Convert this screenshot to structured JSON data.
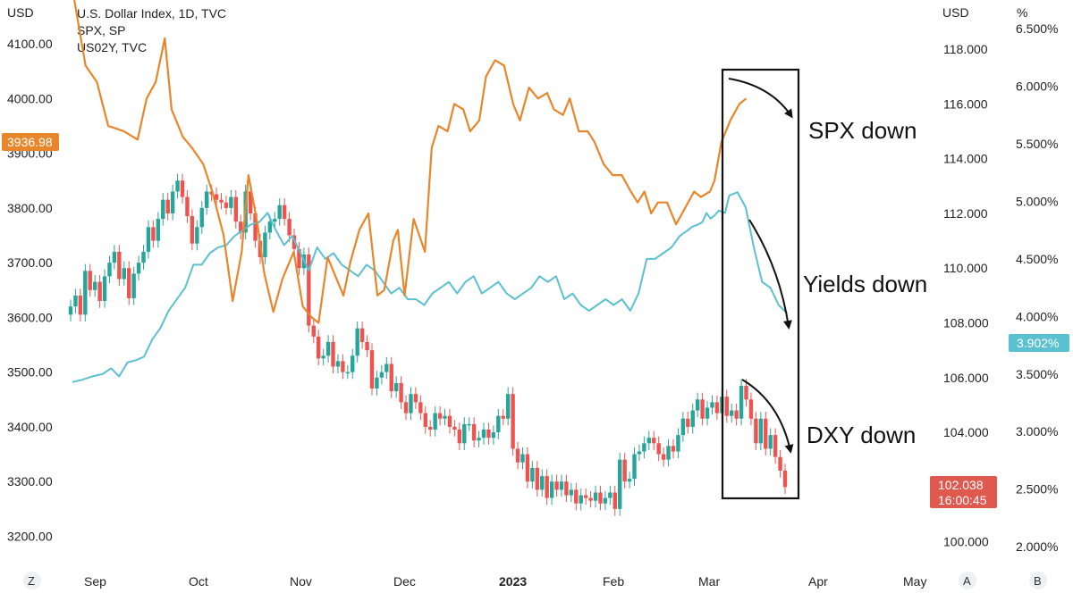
{
  "header": {
    "left_unit": "USD",
    "right_unit_1": "USD",
    "right_unit_2": "%"
  },
  "legend": [
    "U.S. Dollar Index, 1D, TVC",
    "SPX, SP",
    "US02Y, TVC"
  ],
  "annotations": [
    "SPX down",
    "Yields down",
    "DXY down"
  ],
  "footer_buttons": {
    "left": "Z",
    "right_a": "A",
    "right_b": "B"
  },
  "price_tags": {
    "spx": "3936.98",
    "us02y": "3.902%",
    "dxy_price": "102.038",
    "dxy_timer": "16:00:45"
  },
  "colors": {
    "spx": "#e8862b",
    "us02y": "#5bc0d0",
    "candle_up": "#26a69a",
    "candle_down": "#ef5350",
    "tag_dxy": "#e0594f"
  },
  "chart_data": {
    "type": "line",
    "x_tick_labels": [
      "Sep",
      "Oct",
      "Nov",
      "Dec",
      "2023",
      "Feb",
      "Mar",
      "Apr",
      "May"
    ],
    "left_axis": {
      "label": "USD",
      "ticks": [
        "4100.00",
        "4000.00",
        "3900.00",
        "3800.00",
        "3700.00",
        "3600.00",
        "3500.00",
        "3400.00",
        "3300.00",
        "3200.00"
      ],
      "range": [
        3160,
        4180
      ]
    },
    "right_axis_usd": {
      "label": "USD",
      "ticks": [
        "118.000",
        "116.000",
        "114.000",
        "112.000",
        "110.000",
        "108.000",
        "106.000",
        "104.000",
        "102.000",
        "100.000"
      ],
      "range": [
        99.4,
        119.8
      ]
    },
    "right_axis_pct": {
      "label": "%",
      "ticks": [
        "6.500%",
        "6.000%",
        "5.500%",
        "5.000%",
        "4.500%",
        "4.000%",
        "3.500%",
        "3.000%",
        "2.500%",
        "2.000%"
      ],
      "range": [
        1.9,
        6.75
      ]
    },
    "series": [
      {
        "name": "SPX, SP",
        "axis": "left",
        "x": [
          0.12,
          0.7,
          1.2,
          1.7,
          2.4,
          3.0,
          3.4,
          3.8,
          4.2,
          4.5,
          5.0,
          5.4,
          5.9,
          6.3,
          6.8,
          7.2,
          7.6,
          7.9,
          8.3,
          8.6,
          9.0,
          9.4,
          9.9,
          10.3,
          10.7,
          11.0,
          11.4,
          11.7,
          12.1,
          12.4,
          12.8,
          13.2,
          13.6,
          13.9,
          14.3,
          14.5,
          14.8,
          15.2,
          15.7,
          16.0,
          16.3,
          16.7,
          17.0,
          17.4,
          17.7,
          18.1,
          18.4,
          18.8,
          19.2,
          19.6,
          19.9,
          20.3,
          20.7,
          21.1,
          21.4,
          21.8,
          22.1,
          22.5,
          22.9,
          23.2,
          23.6,
          24.0,
          24.4,
          24.8,
          25.1,
          25.4,
          25.7,
          26.0,
          26.4,
          26.8,
          27.2,
          27.6,
          27.9,
          28.3,
          28.5,
          28.8,
          29.2,
          29.6,
          29.9
        ],
        "y": [
          4200,
          4060,
          4030,
          3950,
          3940,
          3925,
          4000,
          4030,
          4110,
          3980,
          3930,
          3910,
          3880,
          3830,
          3750,
          3630,
          3720,
          3860,
          3770,
          3680,
          3610,
          3670,
          3720,
          3620,
          3600,
          3590,
          3710,
          3680,
          3640,
          3700,
          3760,
          3790,
          3640,
          3650,
          3740,
          3760,
          3640,
          3780,
          3720,
          3910,
          3950,
          3940,
          3990,
          3980,
          3940,
          3960,
          4040,
          4070,
          4060,
          3990,
          3960,
          4020,
          4000,
          4010,
          3980,
          3970,
          4000,
          3940,
          3940,
          3920,
          3880,
          3860,
          3860,
          3830,
          3810,
          3830,
          3790,
          3810,
          3810,
          3770,
          3800,
          3830,
          3820,
          3830,
          3850,
          3920,
          3960,
          3990,
          4000
        ]
      },
      {
        "name": "US02Y, TVC",
        "axis": "pct",
        "x": [
          0.12,
          0.6,
          1.1,
          1.6,
          2.0,
          2.4,
          2.8,
          3.2,
          3.6,
          4.0,
          4.4,
          4.8,
          5.2,
          5.6,
          6.0,
          6.4,
          6.8,
          7.2,
          7.6,
          8.0,
          8.4,
          8.8,
          9.2,
          9.6,
          10.0,
          10.4,
          10.8,
          11.2,
          11.6,
          12.0,
          12.4,
          12.8,
          13.2,
          13.6,
          14.0,
          14.4,
          14.8,
          15.2,
          15.6,
          16.0,
          16.4,
          16.8,
          17.2,
          17.6,
          18.0,
          18.4,
          18.8,
          19.2,
          19.6,
          20.0,
          20.4,
          20.8,
          21.2,
          21.6,
          22.0,
          22.4,
          22.8,
          23.2,
          23.6,
          24.0,
          24.4,
          24.8,
          25.2,
          25.6,
          26.0,
          26.4,
          26.8,
          27.2,
          27.6,
          28.0,
          28.4,
          28.8,
          29.2,
          29.6,
          30.0,
          30.2,
          30.5,
          30.7,
          30.9,
          31.1,
          31.3,
          31.5,
          31.8,
          32.0,
          32.4,
          32.8,
          33.2,
          33.6,
          34.0,
          34.4,
          34.8
        ],
        "y": [
          3.43,
          3.45,
          3.48,
          3.5,
          3.55,
          3.48,
          3.6,
          3.62,
          3.65,
          3.8,
          3.9,
          4.05,
          4.15,
          4.25,
          4.45,
          4.45,
          4.55,
          4.6,
          4.62,
          4.7,
          4.75,
          4.8,
          4.82,
          4.9,
          4.75,
          4.62,
          4.7,
          4.55,
          4.4,
          4.6,
          4.5,
          4.55,
          4.45,
          4.4,
          4.35,
          4.45,
          4.4,
          4.3,
          4.2,
          4.25,
          4.15,
          4.15,
          4.1,
          4.2,
          4.25,
          4.3,
          4.2,
          4.3,
          4.35,
          4.2,
          4.25,
          4.3,
          4.2,
          4.15,
          4.2,
          4.25,
          4.35,
          4.3,
          4.35,
          4.15,
          4.2,
          4.1,
          4.05,
          4.1,
          4.15,
          4.1,
          4.15,
          4.05,
          4.2,
          4.5,
          4.5,
          4.55,
          4.6,
          4.7,
          4.75,
          4.78,
          4.8,
          4.82,
          4.9,
          4.85,
          4.88,
          4.92,
          4.9,
          5.05,
          5.08,
          4.95,
          4.6,
          4.3,
          4.25,
          4.1,
          4.03
        ]
      },
      {
        "name": "U.S. Dollar Index, 1D, TVC",
        "axis": "usd",
        "type": "candlestick",
        "close": [
          108.6,
          109.0,
          108.3,
          109.9,
          109.2,
          109.5,
          108.8,
          109.7,
          110.2,
          110.6,
          109.6,
          110.0,
          108.9,
          109.8,
          110.2,
          110.6,
          111.5,
          111.0,
          111.8,
          112.5,
          112.0,
          112.8,
          113.2,
          112.6,
          111.9,
          110.9,
          111.5,
          112.2,
          112.8,
          112.7,
          112.5,
          112.4,
          112.2,
          112.6,
          111.7,
          111.3,
          112.8,
          112.0,
          111.0,
          110.4,
          111.3,
          111.7,
          111.8,
          112.3,
          111.8,
          111.2,
          110.7,
          110.0,
          110.5,
          107.9,
          107.5,
          106.7,
          106.8,
          107.3,
          106.4,
          106.6,
          106.2,
          106.2,
          106.8,
          107.8,
          107.3,
          107.0,
          105.6,
          106.0,
          106.2,
          106.5,
          105.5,
          105.8,
          105.1,
          104.7,
          105.4,
          105.1,
          104.7,
          104.2,
          104.1,
          104.7,
          104.5,
          104.6,
          104.2,
          104.1,
          103.6,
          104.3,
          104.3,
          103.7,
          103.8,
          104.1,
          103.8,
          104.0,
          104.6,
          104.5,
          105.4,
          103.4,
          102.9,
          103.2,
          102.2,
          102.7,
          101.9,
          102.4,
          101.6,
          102.2,
          101.9,
          102.2,
          101.7,
          101.9,
          101.4,
          101.7,
          101.6,
          101.5,
          101.8,
          101.4,
          101.6,
          101.8,
          101.2,
          103.0,
          102.2,
          102.3,
          103.2,
          103.3,
          103.6,
          103.8,
          103.6,
          103.2,
          103.0,
          103.5,
          103.3,
          103.9,
          104.5,
          104.2,
          104.8,
          105.2,
          104.5,
          104.9,
          105.1,
          104.7,
          105.3,
          104.6,
          104.8,
          104.5,
          105.7,
          105.2,
          104.5,
          103.6,
          104.5,
          103.4,
          103.9,
          103.1,
          102.6,
          102.0
        ]
      }
    ],
    "annotations": [
      "SPX down",
      "Yields down",
      "DXY down"
    ]
  }
}
